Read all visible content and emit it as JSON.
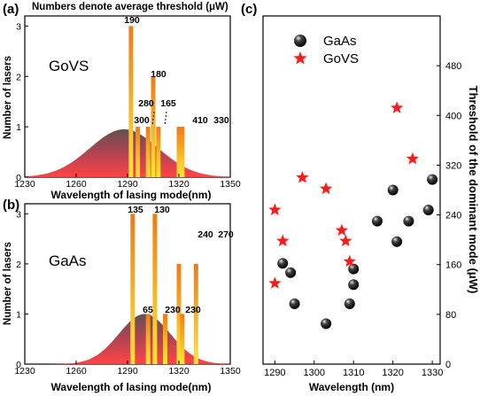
{
  "figure_title": "Numbers denote average threshold (μW)",
  "panels": {
    "a": {
      "label": "(a)",
      "material": "GoVS"
    },
    "b": {
      "label": "(b)",
      "material": "GaAs"
    },
    "c": {
      "label": "(c)"
    }
  },
  "colors": {
    "bar_top": "#f07a16",
    "bar_bottom": "#ffe633",
    "dist_top": "#5a4846",
    "dist_bottom": "#ff3b3b",
    "gaas_marker": "#000000",
    "govs_marker": "#ff1a1a"
  },
  "chart_data": [
    {
      "panel": "a",
      "type": "bar",
      "title": "",
      "xlabel": "Wavelength of lasing mode(nm)",
      "ylabel": "Number of lasers",
      "xlim": [
        1230,
        1350
      ],
      "ylim": [
        0,
        3.2
      ],
      "xticks": [
        "1230",
        "1260",
        "1290",
        "1320",
        "1350"
      ],
      "yticks": [
        "0",
        "1",
        "2",
        "3"
      ],
      "bars": [
        {
          "x": 1292,
          "value": 3
        },
        {
          "x": 1296,
          "value": 1
        },
        {
          "x": 1302,
          "value": 1
        },
        {
          "x": 1305,
          "value": 2
        },
        {
          "x": 1308,
          "value": 1
        },
        {
          "x": 1320,
          "value": 1
        },
        {
          "x": 1322,
          "value": 1
        }
      ],
      "annotations": [
        "190",
        "180",
        "280",
        "165",
        "300",
        "410",
        "330"
      ],
      "distribution": {
        "mean": 1288,
        "width": 20,
        "peak": 0.95
      }
    },
    {
      "panel": "b",
      "type": "bar",
      "title": "",
      "xlabel": "Wavelength of lasing mode(nm)",
      "ylabel": "Number of lasers",
      "xlim": [
        1230,
        1350
      ],
      "ylim": [
        0,
        3.2
      ],
      "xticks": [
        "1230",
        "1260",
        "1290",
        "1320",
        "1350"
      ],
      "yticks": [
        "0",
        "1",
        "2",
        "3"
      ],
      "bars": [
        {
          "x": 1293,
          "value": 3
        },
        {
          "x": 1302,
          "value": 1
        },
        {
          "x": 1306,
          "value": 3
        },
        {
          "x": 1312,
          "value": 1
        },
        {
          "x": 1320,
          "value": 2
        },
        {
          "x": 1322,
          "value": 1
        },
        {
          "x": 1330,
          "value": 2
        }
      ],
      "annotations": [
        "135",
        "130",
        "65",
        "230",
        "240",
        "230",
        "270"
      ],
      "distribution": {
        "mean": 1300,
        "width": 15,
        "peak": 1.0
      }
    },
    {
      "panel": "c",
      "type": "scatter",
      "title": "",
      "xlabel": "Wavelength (nm)",
      "ylabel": "Threshold of the dominant mode (μW)",
      "xlim": [
        1287,
        1332
      ],
      "ylim": [
        0,
        560
      ],
      "xticks": [
        "1290",
        "1300",
        "1310",
        "1320",
        "1330"
      ],
      "yticks": [
        "0",
        "80",
        "160",
        "240",
        "320",
        "400",
        "480"
      ],
      "legend_position": "top-left",
      "series": [
        {
          "name": "GaAs",
          "marker": "sphere",
          "points": [
            [
              1292,
              162
            ],
            [
              1294,
              147
            ],
            [
              1295,
              97
            ],
            [
              1303,
              65
            ],
            [
              1309,
              97
            ],
            [
              1310,
              153
            ],
            [
              1310,
              128
            ],
            [
              1316,
              230
            ],
            [
              1320,
              280
            ],
            [
              1321,
              197
            ],
            [
              1324,
              230
            ],
            [
              1329,
              248
            ],
            [
              1330,
              297
            ]
          ]
        },
        {
          "name": "GoVS",
          "marker": "star",
          "points": [
            [
              1290,
              130
            ],
            [
              1290,
              248
            ],
            [
              1292,
              198
            ],
            [
              1297,
              300
            ],
            [
              1303,
              282
            ],
            [
              1307,
              215
            ],
            [
              1308,
              198
            ],
            [
              1309,
              165
            ],
            [
              1321,
              412
            ],
            [
              1325,
              330
            ]
          ]
        }
      ]
    }
  ]
}
